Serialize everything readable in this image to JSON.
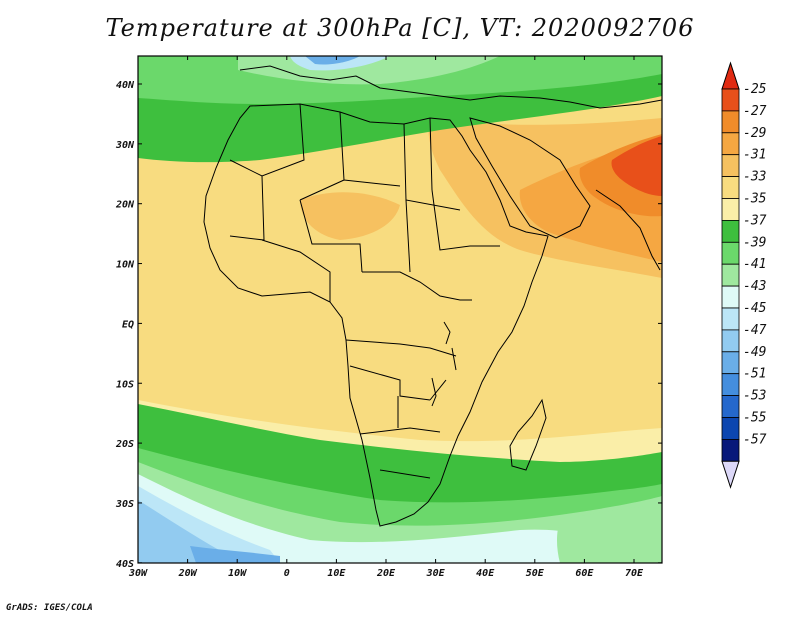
{
  "title": "Temperature at 300hPa [C], VT: 2020092706",
  "footer": "GrADS: IGES/COLA",
  "map": {
    "region": "Africa",
    "lon_range": [
      -30,
      75
    ],
    "lat_range": [
      -40,
      45
    ],
    "x_ticks": [
      "30W",
      "20W",
      "10W",
      "0",
      "10E",
      "20E",
      "30E",
      "40E",
      "50E",
      "60E",
      "70E"
    ],
    "y_ticks": [
      "40N",
      "30N",
      "20N",
      "10N",
      "EQ",
      "10S",
      "20S",
      "30S",
      "40S"
    ]
  },
  "colorbar": {
    "levels": [
      "-25",
      "-27",
      "-29",
      "-31",
      "-33",
      "-35",
      "-37",
      "-39",
      "-41",
      "-43",
      "-45",
      "-47",
      "-49",
      "-51",
      "-53",
      "-55",
      "-57"
    ],
    "colors": [
      "#e8501a",
      "#f08c2a",
      "#f5a742",
      "#f6c160",
      "#f8dc80",
      "#faeea8",
      "#3ebf3e",
      "#6bd86b",
      "#9fe89f",
      "#dffaf7",
      "#bce6f7",
      "#92cbf0",
      "#6aaee8",
      "#448ede",
      "#2568cc",
      "#0c46b0",
      "#08197a"
    ],
    "top_arrow_color": "#e02a12",
    "bottom_arrow_color": "#dcd8f8"
  },
  "fields": {
    "background": "#f8dc80",
    "warm_band": "#f6c160",
    "hot_core": "#f08c2a",
    "peak": "#e8501a",
    "green_dark": "#3ebf3e",
    "green_mid": "#6bd86b",
    "green_light": "#9fe89f",
    "cyan_light": "#dffaf7",
    "blue_light": "#bce6f7",
    "blue_mid": "#92cbf0",
    "blue_dark": "#6aaee8"
  }
}
